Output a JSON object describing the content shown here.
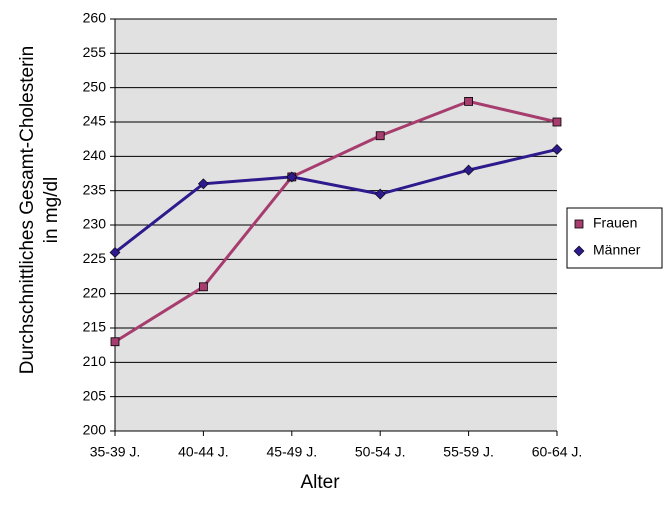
{
  "chart_data": {
    "type": "line",
    "x_label": "Alter",
    "y_label": [
      "Durchschnittliches Gesamt-Cholesterin",
      "in mg/dl"
    ],
    "categories": [
      "35-39 J.",
      "40-44 J.",
      "45-49 J.",
      "50-54 J.",
      "55-59 J.",
      "60-64 J."
    ],
    "series": [
      {
        "name": "Frauen",
        "color": "#a63d6e",
        "marker": "square",
        "values": [
          213,
          221,
          237,
          243,
          248,
          245
        ]
      },
      {
        "name": "Männer",
        "color": "#2e1a8c",
        "marker": "diamond",
        "values": [
          226,
          236,
          237,
          234.5,
          238,
          241
        ]
      }
    ],
    "ylim": [
      200,
      260
    ],
    "yticks": [
      200,
      205,
      210,
      215,
      220,
      225,
      230,
      235,
      240,
      245,
      250,
      255,
      260
    ],
    "grid": true,
    "legend": "right"
  }
}
